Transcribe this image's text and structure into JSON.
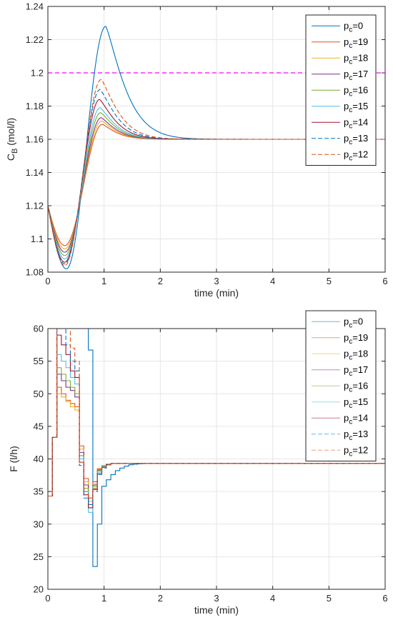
{
  "chart_data": [
    {
      "type": "line",
      "xlabel": "time (min)",
      "ylabel_main": "C",
      "ylabel_sub": "B",
      "ylabel_unit": " (mol/l)",
      "xlim": [
        0,
        6
      ],
      "ylim": [
        1.08,
        1.24
      ],
      "xticks": [
        0,
        1,
        2,
        3,
        4,
        5,
        6
      ],
      "yticks": [
        1.08,
        1.1,
        1.12,
        1.14,
        1.16,
        1.18,
        1.2,
        1.22,
        1.24
      ],
      "xtick_labels": [
        "0",
        "1",
        "2",
        "3",
        "4",
        "5",
        "6"
      ],
      "ytick_labels": [
        "1.08",
        "1.1",
        "1.12",
        "1.14",
        "1.16",
        "1.18",
        "1.2",
        "1.22",
        "1.24"
      ],
      "grid": true,
      "legend_position": "top-right",
      "reference_line": {
        "y": 1.2,
        "color": "#ff00ff",
        "style": "dashed"
      },
      "series": [
        {
          "name_main": "p",
          "name_sub": "c",
          "name_rest": "=0",
          "color": "#0072bd",
          "dash": false,
          "min_y": 1.082,
          "min_t": 0.33,
          "peak_y": 1.228,
          "peak_t": 1.03,
          "tau": 0.42
        },
        {
          "name_main": "p",
          "name_sub": "c",
          "name_rest": "=19",
          "color": "#d95319",
          "dash": false,
          "min_y": 1.096,
          "min_t": 0.3,
          "peak_y": 1.169,
          "peak_t": 0.97,
          "tau": 0.3
        },
        {
          "name_main": "p",
          "name_sub": "c",
          "name_rest": "=18",
          "color": "#edb120",
          "dash": false,
          "min_y": 1.094,
          "min_t": 0.3,
          "peak_y": 1.171,
          "peak_t": 0.96,
          "tau": 0.31
        },
        {
          "name_main": "p",
          "name_sub": "c",
          "name_rest": "=17",
          "color": "#7e2f8e",
          "dash": false,
          "min_y": 1.092,
          "min_t": 0.3,
          "peak_y": 1.173,
          "peak_t": 0.95,
          "tau": 0.32
        },
        {
          "name_main": "p",
          "name_sub": "c",
          "name_rest": "=16",
          "color": "#77ac30",
          "dash": false,
          "min_y": 1.09,
          "min_t": 0.3,
          "peak_y": 1.176,
          "peak_t": 0.94,
          "tau": 0.33
        },
        {
          "name_main": "p",
          "name_sub": "c",
          "name_rest": "=15",
          "color": "#4dbeee",
          "dash": false,
          "min_y": 1.088,
          "min_t": 0.3,
          "peak_y": 1.179,
          "peak_t": 0.93,
          "tau": 0.34
        },
        {
          "name_main": "p",
          "name_sub": "c",
          "name_rest": "=14",
          "color": "#a2142f",
          "dash": false,
          "min_y": 1.086,
          "min_t": 0.3,
          "peak_y": 1.184,
          "peak_t": 0.92,
          "tau": 0.35
        },
        {
          "name_main": "p",
          "name_sub": "c",
          "name_rest": "=13",
          "color": "#0072bd",
          "dash": true,
          "min_y": 1.085,
          "min_t": 0.3,
          "peak_y": 1.19,
          "peak_t": 0.93,
          "tau": 0.36
        },
        {
          "name_main": "p",
          "name_sub": "c",
          "name_rest": "=12",
          "color": "#d95319",
          "dash": true,
          "min_y": 1.084,
          "min_t": 0.3,
          "peak_y": 1.196,
          "peak_t": 0.95,
          "tau": 0.37
        }
      ],
      "steady_state": 1.16,
      "initial": 1.12
    },
    {
      "type": "line",
      "xlabel": "time (min)",
      "ylabel": "F (l/h)",
      "xlim": [
        0,
        6
      ],
      "ylim": [
        20,
        60
      ],
      "xticks": [
        0,
        1,
        2,
        3,
        4,
        5,
        6
      ],
      "yticks": [
        20,
        25,
        30,
        35,
        40,
        45,
        50,
        55,
        60
      ],
      "xtick_labels": [
        "0",
        "1",
        "2",
        "3",
        "4",
        "5",
        "6"
      ],
      "ytick_labels": [
        "20",
        "25",
        "30",
        "35",
        "40",
        "45",
        "50",
        "55",
        "60"
      ],
      "grid": true,
      "legend_position": "top-right",
      "step_dt": 0.08,
      "steady_state": 39.3,
      "initial": 34.3,
      "series": [
        {
          "name_main": "p",
          "name_sub": "c",
          "name_rest": "=0",
          "color": "#0072bd",
          "dash": false,
          "values": [
            34.3,
            43.3,
            62,
            62,
            62,
            62,
            62,
            62,
            62,
            56.7,
            23.5,
            30,
            35.8,
            36.8,
            37.6,
            38.2,
            38.6,
            38.9,
            39.1,
            39.2,
            39.25,
            39.3
          ]
        },
        {
          "name_main": "p",
          "name_sub": "c",
          "name_rest": "=19",
          "color": "#d95319",
          "dash": false,
          "values": [
            34.3,
            43.3,
            51,
            50,
            49,
            48.5,
            48,
            42,
            37,
            34,
            36.5,
            38.5,
            39.0,
            39.2,
            39.3
          ]
        },
        {
          "name_main": "p",
          "name_sub": "c",
          "name_rest": "=18",
          "color": "#edb120",
          "dash": false,
          "values": [
            34.3,
            43.3,
            50,
            49.5,
            48.8,
            48,
            47.5,
            41.5,
            36.5,
            33.5,
            36.2,
            38.4,
            39.0,
            39.2,
            39.3
          ]
        },
        {
          "name_main": "p",
          "name_sub": "c",
          "name_rest": "=17",
          "color": "#7e2f8e",
          "dash": false,
          "values": [
            34.3,
            43.3,
            53,
            52,
            51,
            50.5,
            49.5,
            41,
            36,
            33,
            36,
            38.3,
            38.9,
            39.2,
            39.3
          ]
        },
        {
          "name_main": "p",
          "name_sub": "c",
          "name_rest": "=16",
          "color": "#77ac30",
          "dash": false,
          "values": [
            34.3,
            43.3,
            54,
            53,
            52,
            51,
            50,
            40.5,
            35.5,
            32.5,
            35.8,
            38.2,
            38.9,
            39.2,
            39.3
          ]
        },
        {
          "name_main": "p",
          "name_sub": "c",
          "name_rest": "=15",
          "color": "#4dbeee",
          "dash": false,
          "values": [
            34.3,
            43.3,
            56,
            55,
            54,
            52.5,
            51.5,
            40,
            35,
            31.8,
            35.5,
            38.0,
            38.8,
            39.2,
            39.3
          ]
        },
        {
          "name_main": "p",
          "name_sub": "c",
          "name_rest": "=14",
          "color": "#a2142f",
          "dash": false,
          "values": [
            34.3,
            43.3,
            59,
            57.5,
            56,
            53.5,
            52.5,
            39.5,
            34.5,
            32.5,
            35.3,
            37.8,
            38.7,
            39.1,
            39.3
          ]
        },
        {
          "name_main": "p",
          "name_sub": "c",
          "name_rest": "=13",
          "color": "#0072bd",
          "dash": true,
          "values": [
            34.3,
            43.3,
            62,
            60,
            57.5,
            55,
            53.5,
            39,
            34,
            33,
            35,
            37.6,
            38.6,
            39.1,
            39.3
          ]
        },
        {
          "name_main": "p",
          "name_sub": "c",
          "name_rest": "=12",
          "color": "#d95319",
          "dash": true,
          "values": [
            34.3,
            43.3,
            62,
            62,
            60,
            57,
            55,
            39.5,
            35,
            34,
            35.5,
            37.8,
            38.7,
            39.1,
            39.3
          ]
        }
      ]
    }
  ]
}
